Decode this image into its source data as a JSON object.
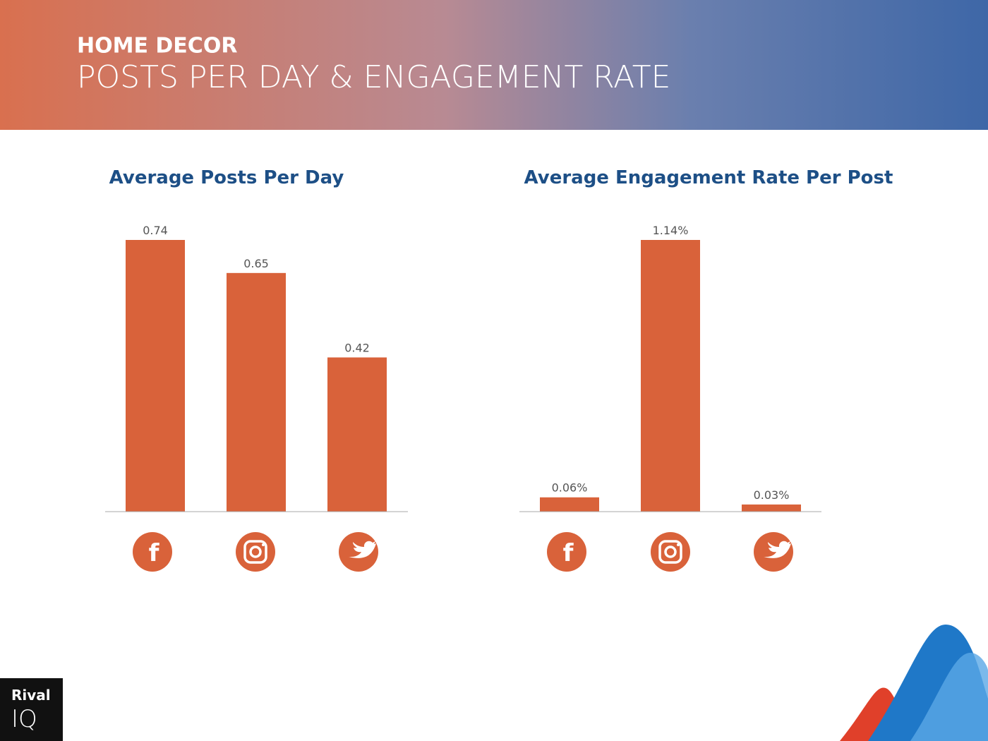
{
  "header": {
    "subtitle": "HOME DECOR",
    "title": "POSTS PER DAY & ENGAGEMENT RATE"
  },
  "logo": {
    "line1": "Rival",
    "line2": "IQ"
  },
  "chart_data": [
    {
      "type": "bar",
      "title": "Average Posts Per Day",
      "categories": [
        null,
        null,
        null
      ],
      "values": [
        0.74,
        0.65,
        0.42
      ],
      "color": "#d9623a"
    },
    {
      "type": "bar",
      "title": "Average Engagement Rate Per Post",
      "categories": [
        null,
        null,
        null
      ],
      "values": [
        0.06,
        1.14,
        0.03
      ],
      "value_labels": [
        "0.06%",
        "1.14%",
        "0.03%"
      ],
      "color": "#d9623a"
    }
  ]
}
